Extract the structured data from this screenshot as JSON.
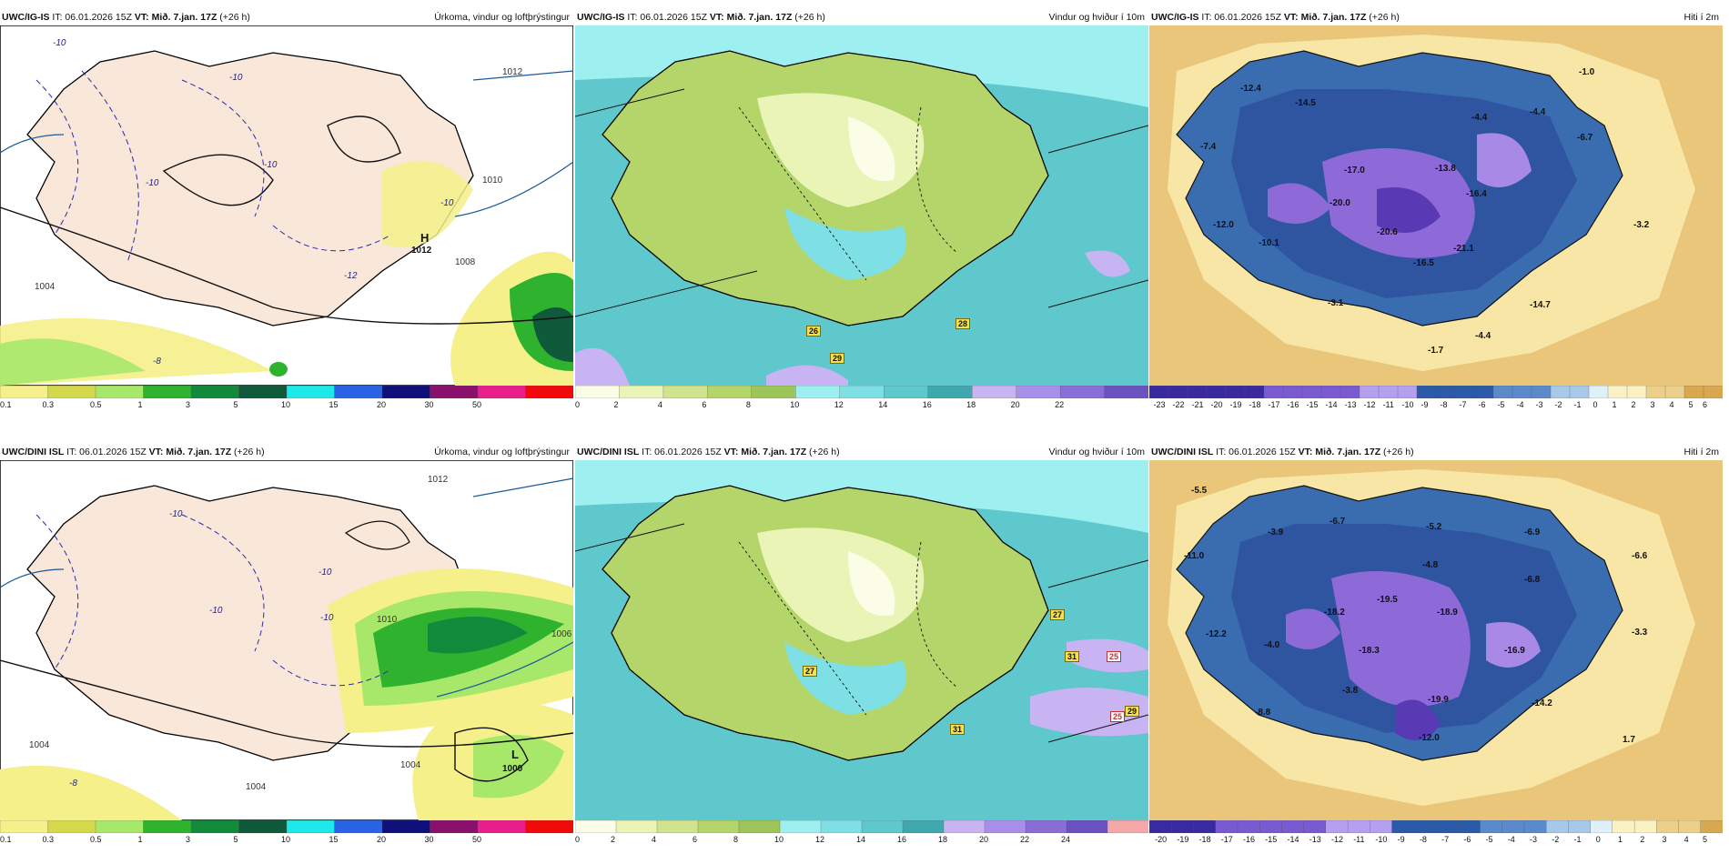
{
  "panels": [
    {
      "model": "UWC/IG-IS",
      "it": "IT: 06.01.2026 15Z",
      "vt_label": "VT:",
      "vt": "Mið. 7.jan. 17Z",
      "lead": "(+26 h)",
      "title": "Úrkoma, vindur og loftþrýstingur",
      "colorbar": [
        "0.1",
        "0.3",
        "0.5",
        "1",
        "3",
        "5",
        "10",
        "15",
        "20",
        "30",
        "50"
      ],
      "colors": [
        "#f5f08a",
        "#d4d94c",
        "#a7e86a",
        "#2fb32f",
        "#128a3c",
        "#0e5a3a",
        "#1ee8e8",
        "#2a64e6",
        "#10107a",
        "#8a106e",
        "#e81e8a",
        "#f00a0a"
      ],
      "labels": [
        {
          "t": "-10",
          "c": "blue"
        },
        {
          "t": "-10",
          "c": "blue"
        },
        {
          "t": "-10",
          "c": "blue"
        },
        {
          "t": "-10",
          "c": "blue"
        },
        {
          "t": "-10",
          "c": "blue"
        },
        {
          "t": "1012",
          "c": "gray"
        },
        {
          "t": "1010",
          "c": "gray"
        },
        {
          "t": "1008",
          "c": "gray"
        },
        {
          "t": "1004",
          "c": "gray"
        },
        {
          "t": "H",
          "c": "bold"
        },
        {
          "t": "1012",
          "c": "bold"
        },
        {
          "t": "-12",
          "c": "blue"
        },
        {
          "t": "-8",
          "c": "blue"
        }
      ]
    },
    {
      "model": "UWC/IG-IS",
      "it": "IT: 06.01.2026 15Z",
      "vt_label": "VT:",
      "vt": "Mið. 7.jan. 17Z",
      "lead": "(+26 h)",
      "title": "Vindur og hviður í 10m",
      "colorbar": [
        "0",
        "2",
        "4",
        "6",
        "8",
        "10",
        "12",
        "14",
        "16",
        "18",
        "20",
        "22"
      ],
      "colors": [
        "#fbfde6",
        "#e9f4b6",
        "#cfe48d",
        "#b4d56a",
        "#9cc55a",
        "#9ef0f0",
        "#7ee0e4",
        "#5fc8cc",
        "#3fa8ae",
        "#c8b4f2",
        "#a890ea",
        "#8a6ed8",
        "#6a52c0"
      ],
      "labels": [
        {
          "t": "26",
          "c": "tag"
        },
        {
          "t": "29",
          "c": "tag"
        },
        {
          "t": "28",
          "c": "tag"
        }
      ]
    },
    {
      "model": "UWC/IG-IS",
      "it": "IT: 06.01.2026 15Z",
      "vt_label": "VT:",
      "vt": "Mið. 7.jan. 17Z",
      "lead": "(+26 h)",
      "title": "Hiti í 2m",
      "colorbar": [
        "-23",
        "-22",
        "-21",
        "-20",
        "-19",
        "-18",
        "-17",
        "-16",
        "-15",
        "-14",
        "-13",
        "-12",
        "-11",
        "-10",
        "-9",
        "-8",
        "-7",
        "-6",
        "-5",
        "-4",
        "-3",
        "-2",
        "-1",
        "0",
        "1",
        "2",
        "3",
        "4",
        "5",
        "6"
      ],
      "labels": [
        {
          "t": "-12.4"
        },
        {
          "t": "-14.5"
        },
        {
          "t": "-1.0"
        },
        {
          "t": "-7.4"
        },
        {
          "t": "-17.0"
        },
        {
          "t": "-13.8"
        },
        {
          "t": "-4.4"
        },
        {
          "t": "-4.4"
        },
        {
          "t": "-6.7"
        },
        {
          "t": "-20.0"
        },
        {
          "t": "-16.4"
        },
        {
          "t": "-12.0"
        },
        {
          "t": "-20.6"
        },
        {
          "t": "-21.1"
        },
        {
          "t": "-3.2"
        },
        {
          "t": "-10.1"
        },
        {
          "t": "-16.5"
        },
        {
          "t": "-3.1"
        },
        {
          "t": "-14.7"
        },
        {
          "t": "-4.4"
        },
        {
          "t": "-1.7"
        }
      ]
    },
    {
      "model": "UWC/DINI ISL",
      "it": "IT: 06.01.2026 15Z",
      "vt_label": "VT:",
      "vt": "Mið. 7.jan. 17Z",
      "lead": "(+26 h)",
      "title": "Úrkoma, vindur og loftþrýstingur",
      "colorbar": [
        "0.1",
        "0.3",
        "0.5",
        "1",
        "3",
        "5",
        "10",
        "15",
        "20",
        "30",
        "50"
      ],
      "colors": [
        "#f5f08a",
        "#d4d94c",
        "#a7e86a",
        "#2fb32f",
        "#128a3c",
        "#0e5a3a",
        "#1ee8e8",
        "#2a64e6",
        "#10107a",
        "#8a106e",
        "#e81e8a",
        "#f00a0a"
      ],
      "labels": [
        {
          "t": "-10",
          "c": "blue"
        },
        {
          "t": "-10",
          "c": "blue"
        },
        {
          "t": "-10",
          "c": "blue"
        },
        {
          "t": "-10",
          "c": "blue"
        },
        {
          "t": "1012",
          "c": "gray"
        },
        {
          "t": "1010",
          "c": "gray"
        },
        {
          "t": "1006",
          "c": "gray"
        },
        {
          "t": "1004",
          "c": "gray"
        },
        {
          "t": "1004",
          "c": "gray"
        },
        {
          "t": "L",
          "c": "bold"
        },
        {
          "t": "1000",
          "c": "bold"
        },
        {
          "t": "-8",
          "c": "blue"
        },
        {
          "t": "1004",
          "c": "gray"
        }
      ]
    },
    {
      "model": "UWC/DINI ISL",
      "it": "IT: 06.01.2026 15Z",
      "vt_label": "VT:",
      "vt": "Mið. 7.jan. 17Z",
      "lead": "(+26 h)",
      "title": "Vindur og hviður í 10m",
      "colorbar": [
        "0",
        "2",
        "4",
        "6",
        "8",
        "10",
        "12",
        "14",
        "16",
        "18",
        "20",
        "22",
        "24"
      ],
      "colors": [
        "#fbfde6",
        "#e9f4b6",
        "#cfe48d",
        "#b4d56a",
        "#9cc55a",
        "#9ef0f0",
        "#7ee0e4",
        "#5fc8cc",
        "#3fa8ae",
        "#c8b4f2",
        "#a890ea",
        "#8a6ed8",
        "#6a52c0",
        "#f4a8a8"
      ],
      "labels": [
        {
          "t": "27",
          "c": "tag"
        },
        {
          "t": "27",
          "c": "tag"
        },
        {
          "t": "31",
          "c": "tag"
        },
        {
          "t": "25",
          "c": "tagw"
        },
        {
          "t": "25",
          "c": "tagw"
        },
        {
          "t": "29",
          "c": "tag"
        },
        {
          "t": "31",
          "c": "tag"
        }
      ]
    },
    {
      "model": "UWC/DINI ISL",
      "it": "IT: 06.01.2026 15Z",
      "vt_label": "VT:",
      "vt": "Mið. 7.jan. 17Z",
      "lead": "(+26 h)",
      "title": "Hiti í 2m",
      "colorbar": [
        "-20",
        "-19",
        "-18",
        "-17",
        "-16",
        "-15",
        "-14",
        "-13",
        "-12",
        "-11",
        "-10",
        "-9",
        "-8",
        "-7",
        "-6",
        "-5",
        "-4",
        "-3",
        "-2",
        "-1",
        "0",
        "1",
        "2",
        "3",
        "4",
        "5"
      ],
      "labels": [
        {
          "t": "-5.5"
        },
        {
          "t": "-6.7"
        },
        {
          "t": "-5.2"
        },
        {
          "t": "-6.9"
        },
        {
          "t": "-3.9"
        },
        {
          "t": "-11.0"
        },
        {
          "t": "-4.8"
        },
        {
          "t": "-6.6"
        },
        {
          "t": "-6.8"
        },
        {
          "t": "-19.5"
        },
        {
          "t": "-18.2"
        },
        {
          "t": "-18.9"
        },
        {
          "t": "-12.2"
        },
        {
          "t": "-4.0"
        },
        {
          "t": "-18.3"
        },
        {
          "t": "-16.9"
        },
        {
          "t": "-3.3"
        },
        {
          "t": "-3.8"
        },
        {
          "t": "-19.9"
        },
        {
          "t": "-14.2"
        },
        {
          "t": "-8.8"
        },
        {
          "t": "-12.0"
        },
        {
          "t": "1.7"
        }
      ]
    }
  ]
}
